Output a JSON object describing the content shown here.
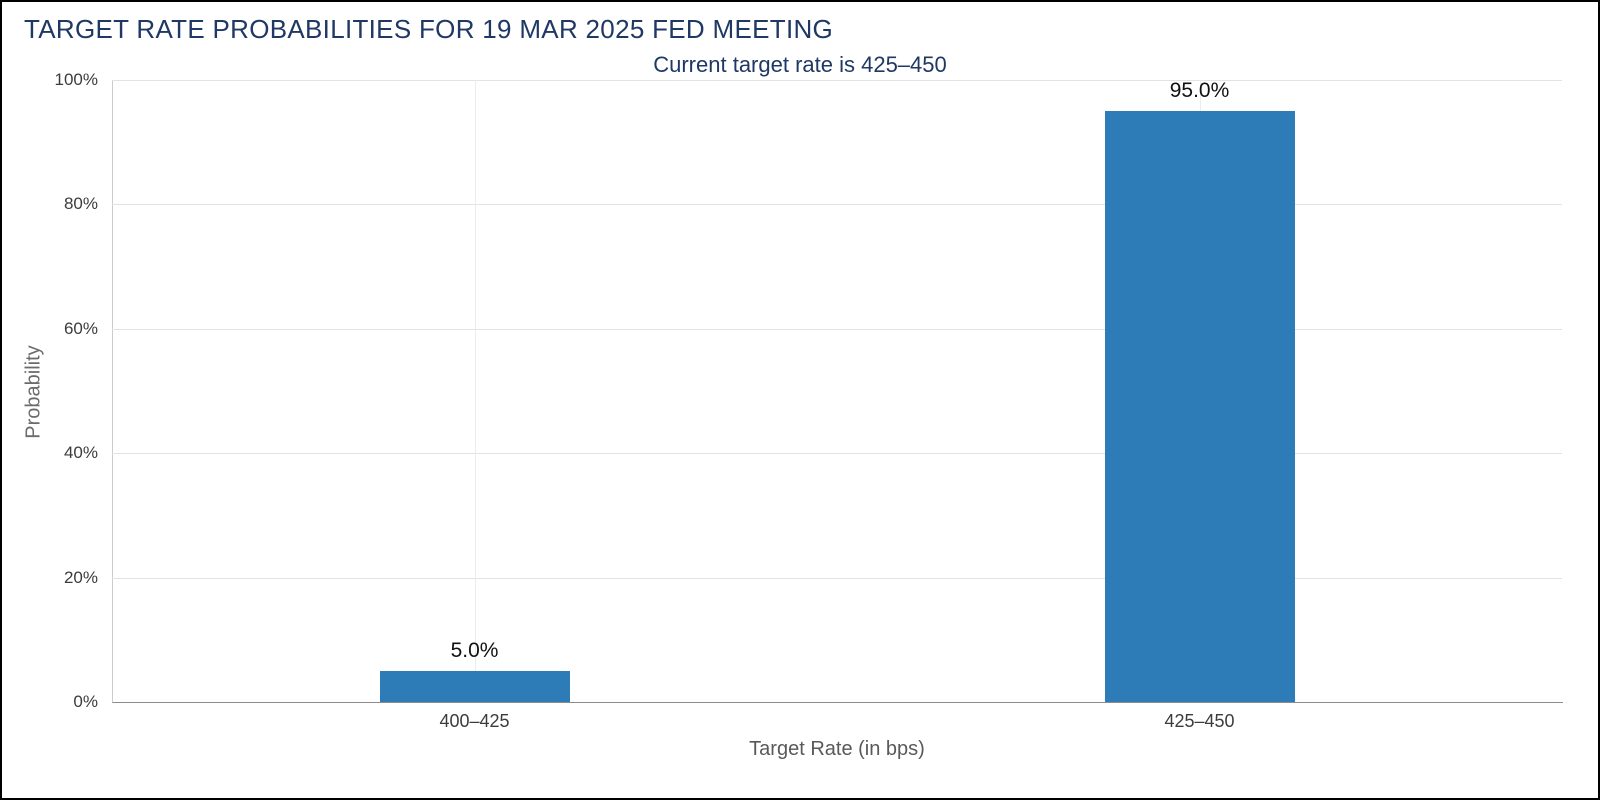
{
  "chart_data": {
    "type": "bar",
    "title": "TARGET RATE PROBABILITIES FOR 19 MAR 2025 FED MEETING",
    "subtitle": "Current target rate is 425–450",
    "categories": [
      "400–425",
      "425–450"
    ],
    "values": [
      5.0,
      95.0
    ],
    "value_labels": [
      "5.0%",
      "95.0%"
    ],
    "xlabel": "Target Rate (in bps)",
    "ylabel": "Probability",
    "ylim": [
      0,
      100
    ],
    "ytick_values": [
      0,
      20,
      40,
      60,
      80,
      100
    ],
    "ytick_labels": [
      "0%",
      "20%",
      "40%",
      "60%",
      "80%",
      "100%"
    ],
    "grid": true,
    "legend": "none",
    "bar_color": "#2d7cb8",
    "title_color": "#1f3864",
    "tick_text_color": "#3c3c3c",
    "axis_label_color": "#595959"
  }
}
